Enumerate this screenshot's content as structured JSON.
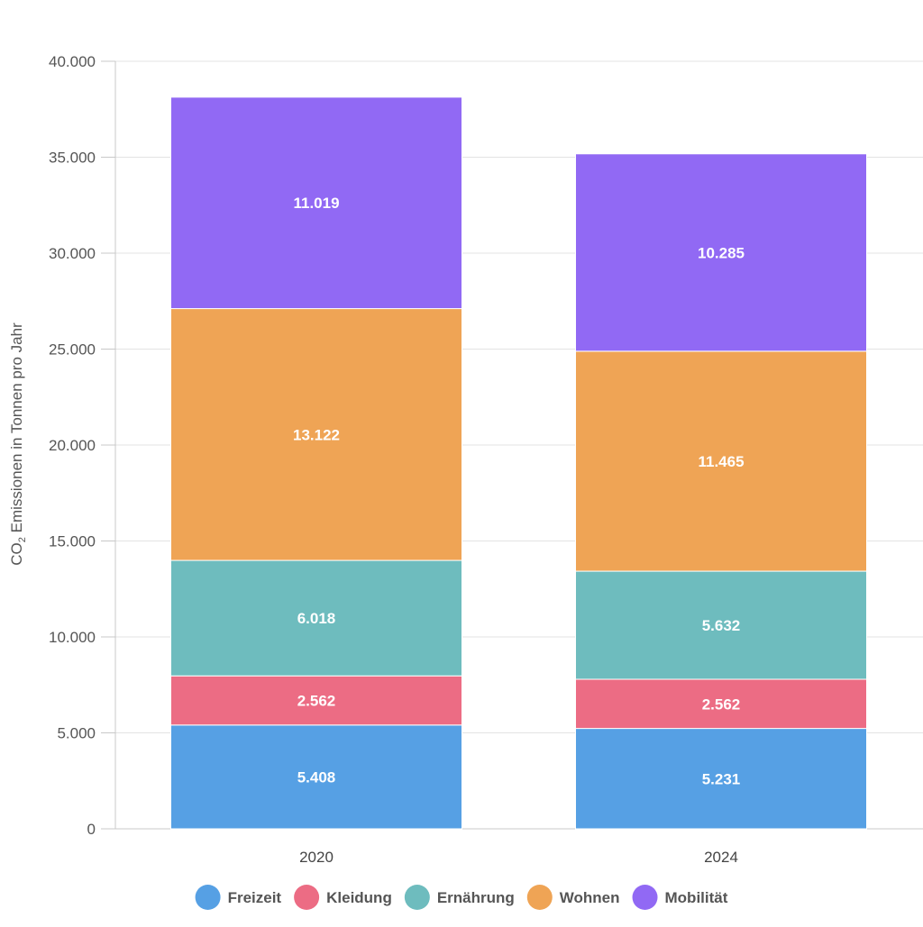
{
  "chart_data": {
    "type": "bar",
    "stacked": true,
    "categories": [
      "2020",
      "2024"
    ],
    "series": [
      {
        "name": "Freizeit",
        "values": [
          5408,
          5231
        ],
        "labels": [
          "5.408",
          "5.231"
        ],
        "color": "#56a0e4"
      },
      {
        "name": "Kleidung",
        "values": [
          2562,
          2562
        ],
        "labels": [
          "2.562",
          "2.562"
        ],
        "color": "#ec6c84"
      },
      {
        "name": "Ernährung",
        "values": [
          6018,
          5632
        ],
        "labels": [
          "6.018",
          "5.632"
        ],
        "color": "#6ebcbe"
      },
      {
        "name": "Wohnen",
        "values": [
          13122,
          11465
        ],
        "labels": [
          "13.122",
          "11.465"
        ],
        "color": "#efa455"
      },
      {
        "name": "Mobilität",
        "values": [
          11019,
          10285
        ],
        "labels": [
          "11.019",
          "10.285"
        ],
        "color": "#9169f4"
      }
    ],
    "ylabel_main": "CO",
    "ylabel_sub": "2",
    "ylabel_rest": " Emissionen in Tonnen pro Jahr",
    "ylim": [
      0,
      40000
    ],
    "yticks": [
      0,
      5000,
      10000,
      15000,
      20000,
      25000,
      30000,
      35000,
      40000
    ],
    "ytick_labels": [
      "0",
      "5.000",
      "10.000",
      "15.000",
      "20.000",
      "25.000",
      "30.000",
      "35.000",
      "40.000"
    ],
    "grid": true,
    "legend_position": "bottom-center"
  }
}
